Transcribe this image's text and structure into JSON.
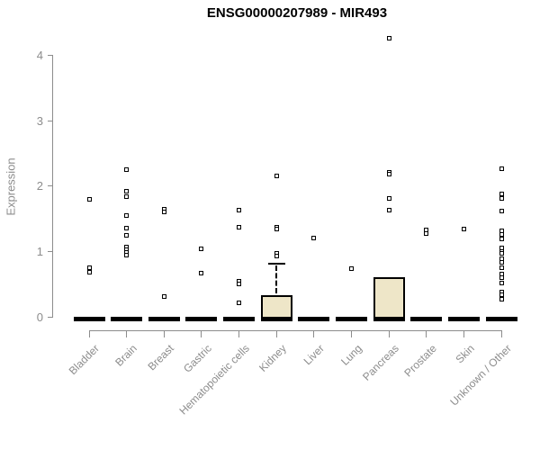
{
  "chart_data": {
    "type": "boxplot",
    "title": "ENSG00000207989 - MIR493",
    "ylabel": "Expression",
    "ylim": [
      0,
      4
    ],
    "yticks": [
      0,
      1,
      2,
      3,
      4
    ],
    "grid": false,
    "legend": "none",
    "categories": [
      "Bladder",
      "Brain",
      "Breast",
      "Gastric",
      "Hematopoietic cells",
      "Kidney",
      "Liver",
      "Lung",
      "Pancreas",
      "Prostate",
      "Skin",
      "Unknown / Other"
    ],
    "series": [
      {
        "category": "Bladder",
        "q1": 0,
        "median": 0,
        "q3": 0,
        "whisker_low": 0,
        "whisker_high": 0,
        "outliers": [
          1.8,
          0.76,
          0.69
        ]
      },
      {
        "category": "Brain",
        "q1": 0,
        "median": 0,
        "q3": 0,
        "whisker_low": 0,
        "whisker_high": 0,
        "outliers": [
          2.25,
          1.93,
          1.84,
          1.55,
          1.36,
          1.25,
          1.07,
          1.03,
          0.99,
          0.95
        ]
      },
      {
        "category": "Breast",
        "q1": 0,
        "median": 0,
        "q3": 0,
        "whisker_low": 0,
        "whisker_high": 0,
        "outliers": [
          1.65,
          1.61,
          0.32
        ]
      },
      {
        "category": "Gastric",
        "q1": 0,
        "median": 0,
        "q3": 0,
        "whisker_low": 0,
        "whisker_high": 0,
        "outliers": [
          1.05,
          0.67
        ]
      },
      {
        "category": "Hematopoietic cells",
        "q1": 0,
        "median": 0,
        "q3": 0,
        "whisker_low": 0,
        "whisker_high": 0,
        "outliers": [
          1.64,
          1.37,
          0.55,
          0.51,
          0.22
        ]
      },
      {
        "category": "Kidney",
        "q1": 0,
        "median": 0,
        "q3": 0.34,
        "whisker_low": 0,
        "whisker_high": 0.82,
        "outliers": [
          2.15,
          1.38,
          1.35,
          0.97,
          0.93
        ]
      },
      {
        "category": "Liver",
        "q1": 0,
        "median": 0,
        "q3": 0,
        "whisker_low": 0,
        "whisker_high": 0,
        "outliers": [
          1.21
        ]
      },
      {
        "category": "Lung",
        "q1": 0,
        "median": 0,
        "q3": 0,
        "whisker_low": 0,
        "whisker_high": 0,
        "outliers": [
          0.75
        ]
      },
      {
        "category": "Pancreas",
        "q1": 0,
        "median": 0,
        "q3": 0.62,
        "whisker_low": 0,
        "whisker_high": 0.62,
        "outliers": [
          4.26,
          2.21,
          2.18,
          1.81,
          1.64
        ]
      },
      {
        "category": "Prostate",
        "q1": 0,
        "median": 0,
        "q3": 0,
        "whisker_low": 0,
        "whisker_high": 0,
        "outliers": [
          1.33,
          1.28
        ]
      },
      {
        "category": "Skin",
        "q1": 0,
        "median": 0,
        "q3": 0,
        "whisker_low": 0,
        "whisker_high": 0,
        "outliers": [
          1.35
        ]
      },
      {
        "category": "Unknown / Other",
        "q1": 0,
        "median": 0,
        "q3": 0,
        "whisker_low": 0,
        "whisker_high": 0,
        "outliers": [
          2.27,
          1.88,
          1.82,
          1.62,
          1.32,
          1.27,
          1.2,
          1.06,
          1.01,
          0.97,
          0.89,
          0.84,
          0.76,
          0.66,
          0.61,
          0.53,
          0.39,
          0.34,
          0.28
        ]
      }
    ],
    "colors": {
      "box_fill": "#eee6c8",
      "box_border": "#000000",
      "outlier": "#000000",
      "median": "#000000",
      "axis": "#8c8c8c",
      "axis_text": "#8c8c8c",
      "title": "#000000",
      "background": "#ffffff"
    }
  }
}
